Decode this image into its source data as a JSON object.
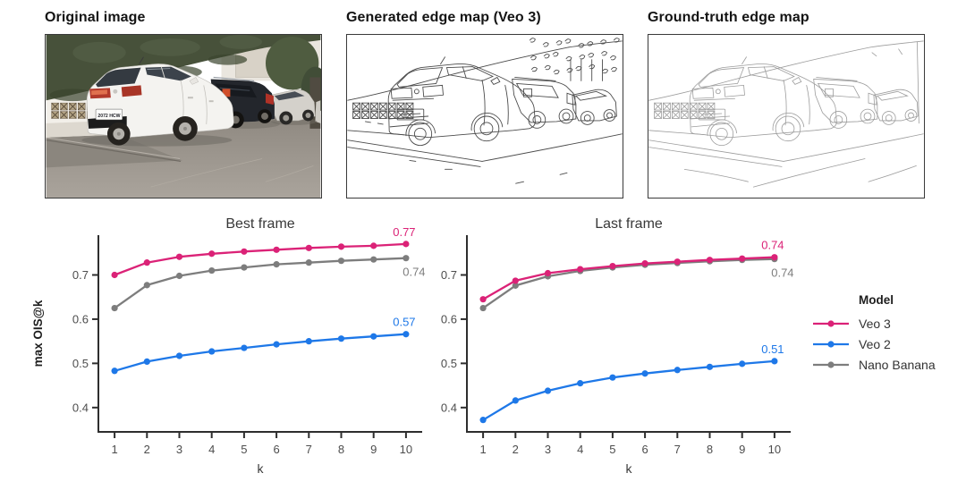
{
  "figure": {
    "panels": [
      {
        "title": "Original image"
      },
      {
        "title": "Generated edge map (Veo 3)"
      },
      {
        "title": "Ground-truth edge map"
      }
    ],
    "license_plate": "2072 HCW"
  },
  "legend": {
    "title": "Model",
    "items": [
      {
        "label": "Veo 3",
        "color": "#db2277"
      },
      {
        "label": "Veo 2",
        "color": "#1e78e8"
      },
      {
        "label": "Nano Banana",
        "color": "#7d7d7d"
      }
    ]
  },
  "chart_data": [
    {
      "type": "line",
      "title": "Best frame",
      "xlabel": "k",
      "ylabel": "max OIS@k",
      "x": [
        1,
        2,
        3,
        4,
        5,
        6,
        7,
        8,
        9,
        10
      ],
      "xlim": [
        0.5,
        10.5
      ],
      "ylim": [
        0.345,
        0.79
      ],
      "yticks": [
        0.4,
        0.5,
        0.6,
        0.7
      ],
      "grid": false,
      "legend_position": "right",
      "series": [
        {
          "name": "Veo 3",
          "color": "#db2277",
          "values": [
            0.7,
            0.728,
            0.741,
            0.748,
            0.753,
            0.757,
            0.761,
            0.764,
            0.766,
            0.77
          ],
          "end_label": "0.77",
          "label_side": "above"
        },
        {
          "name": "Veo 2",
          "color": "#1e78e8",
          "values": [
            0.483,
            0.504,
            0.517,
            0.527,
            0.535,
            0.543,
            0.55,
            0.556,
            0.561,
            0.566
          ],
          "end_label": "0.57",
          "label_side": "above"
        },
        {
          "name": "Nano Banana",
          "color": "#7d7d7d",
          "values": [
            0.625,
            0.677,
            0.698,
            0.71,
            0.717,
            0.724,
            0.728,
            0.732,
            0.735,
            0.738
          ],
          "end_label": "0.74",
          "label_side": "below"
        }
      ]
    },
    {
      "type": "line",
      "title": "Last frame",
      "xlabel": "k",
      "ylabel": "",
      "x": [
        1,
        2,
        3,
        4,
        5,
        6,
        7,
        8,
        9,
        10
      ],
      "xlim": [
        0.5,
        10.5
      ],
      "ylim": [
        0.345,
        0.79
      ],
      "yticks": [
        0.4,
        0.5,
        0.6,
        0.7
      ],
      "grid": false,
      "series": [
        {
          "name": "Veo 3",
          "color": "#db2277",
          "values": [
            0.645,
            0.687,
            0.704,
            0.713,
            0.72,
            0.726,
            0.73,
            0.734,
            0.737,
            0.74
          ],
          "end_label": "0.74",
          "label_side": "above"
        },
        {
          "name": "Veo 2",
          "color": "#1e78e8",
          "values": [
            0.372,
            0.416,
            0.438,
            0.455,
            0.468,
            0.477,
            0.485,
            0.492,
            0.499,
            0.505
          ],
          "end_label": "0.51",
          "label_side": "above"
        },
        {
          "name": "Nano Banana",
          "color": "#7d7d7d",
          "values": [
            0.625,
            0.676,
            0.697,
            0.709,
            0.717,
            0.723,
            0.727,
            0.731,
            0.734,
            0.736
          ],
          "end_label": "0.74",
          "label_side": "below"
        }
      ]
    }
  ]
}
